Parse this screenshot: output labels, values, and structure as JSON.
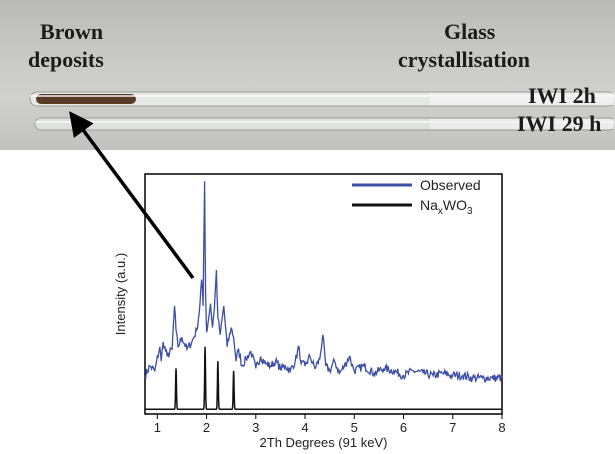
{
  "photo": {
    "label_brown_line1": "Brown",
    "label_brown_line2": "deposits",
    "label_glass_line1": "Glass",
    "label_glass_line2": "crystallisation",
    "label_tube1": "IWI 2h",
    "label_tube2": "IWI 29 h",
    "colors": {
      "deposit": "#5a3b28",
      "glass": "#e6e8e6"
    }
  },
  "chart_data": {
    "type": "line",
    "xlabel": "2Th Degrees (91 keV)",
    "ylabel": "Intensity (a.u.)",
    "xlim": [
      0.75,
      8
    ],
    "ylim": [
      0,
      1
    ],
    "x_ticks": [
      1,
      2,
      3,
      4,
      5,
      6,
      7,
      8
    ],
    "legend_position": "top-right",
    "series": [
      {
        "name": "Observed",
        "color": "#3d4ea6",
        "x": [
          0.75,
          0.85,
          0.95,
          1.05,
          1.08,
          1.12,
          1.2,
          1.3,
          1.35,
          1.38,
          1.42,
          1.5,
          1.6,
          1.7,
          1.8,
          1.85,
          1.9,
          1.93,
          1.96,
          1.98,
          2.0,
          2.03,
          2.08,
          2.12,
          2.16,
          2.2,
          2.23,
          2.28,
          2.35,
          2.42,
          2.5,
          2.55,
          2.6,
          2.65,
          2.72,
          2.8,
          2.9,
          3.0,
          3.1,
          3.2,
          3.3,
          3.4,
          3.5,
          3.6,
          3.7,
          3.8,
          3.88,
          3.92,
          4.0,
          4.1,
          4.2,
          4.3,
          4.36,
          4.42,
          4.5,
          4.6,
          4.7,
          4.8,
          4.9,
          5.0,
          5.2,
          5.4,
          5.6,
          5.8,
          6.0,
          6.2,
          6.4,
          6.6,
          6.8,
          7.0,
          7.2,
          7.4,
          7.6,
          7.8,
          8.0
        ],
        "y": [
          0.16,
          0.2,
          0.18,
          0.28,
          0.22,
          0.3,
          0.24,
          0.27,
          0.45,
          0.35,
          0.28,
          0.32,
          0.27,
          0.3,
          0.35,
          0.42,
          0.56,
          0.45,
          0.97,
          0.5,
          0.34,
          0.38,
          0.46,
          0.36,
          0.44,
          0.6,
          0.4,
          0.33,
          0.45,
          0.28,
          0.36,
          0.32,
          0.22,
          0.27,
          0.2,
          0.23,
          0.26,
          0.19,
          0.24,
          0.21,
          0.2,
          0.22,
          0.19,
          0.2,
          0.18,
          0.22,
          0.28,
          0.21,
          0.2,
          0.24,
          0.19,
          0.23,
          0.33,
          0.2,
          0.18,
          0.22,
          0.17,
          0.2,
          0.24,
          0.18,
          0.2,
          0.17,
          0.19,
          0.18,
          0.16,
          0.18,
          0.17,
          0.16,
          0.17,
          0.16,
          0.16,
          0.15,
          0.15,
          0.15,
          0.15
        ]
      },
      {
        "name": "NaxWO3",
        "name_parts": {
          "base": "Na",
          "sub1": "x",
          "mid": "WO",
          "sub2": "3"
        },
        "color": "#111111",
        "baseline": 0.02,
        "peaks": [
          {
            "x": 1.38,
            "height": 0.17
          },
          {
            "x": 1.97,
            "height": 0.26
          },
          {
            "x": 2.23,
            "height": 0.2
          },
          {
            "x": 2.55,
            "height": 0.16
          }
        ]
      }
    ]
  }
}
